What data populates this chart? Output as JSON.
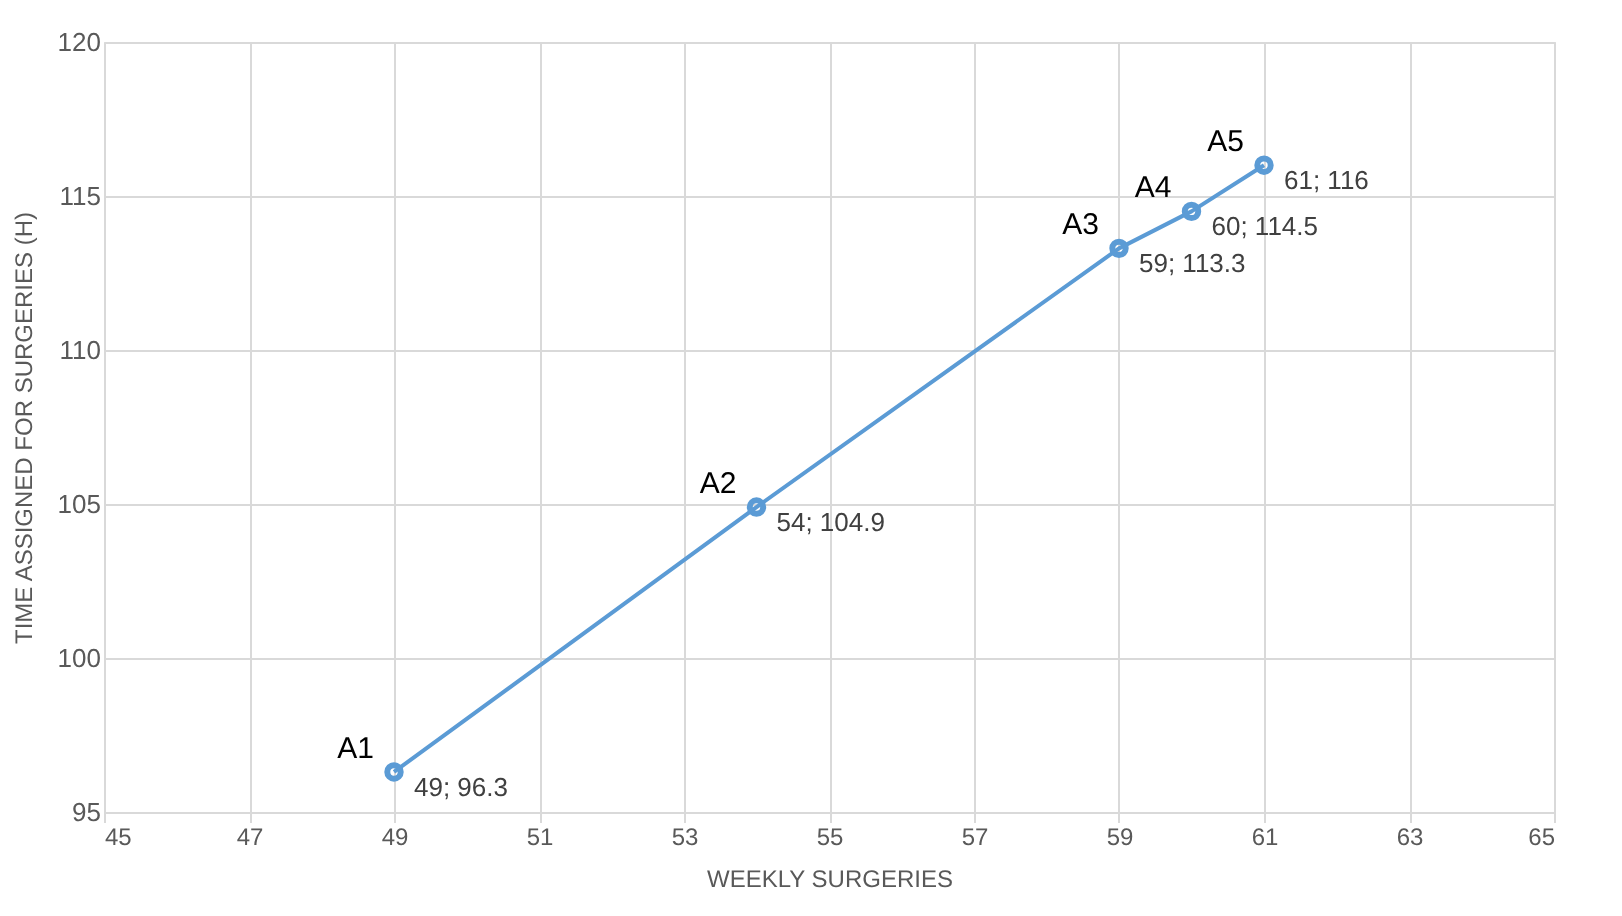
{
  "chart_data": {
    "type": "line",
    "xlabel": "WEEKLY SURGERIES",
    "ylabel": "TIME ASSIGNED FOR SURGERIES (H)",
    "x": [
      49,
      54,
      59,
      60,
      61
    ],
    "series": [
      {
        "color": "#5b9bd5",
        "values": [
          96.3,
          104.9,
          113.3,
          114.5,
          116
        ],
        "value_labels": [
          "49; 96.3",
          "54; 104.9",
          "59; 113.3",
          "60; 114.5",
          "61; 116"
        ]
      }
    ],
    "annotations": [
      {
        "text": "A1",
        "x": 49,
        "y": 96.3
      },
      {
        "text": "A2",
        "x": 54,
        "y": 104.9
      },
      {
        "text": "A3",
        "x": 59,
        "y": 113.3
      },
      {
        "text": "A4",
        "x": 60,
        "y": 114.5
      },
      {
        "text": "A5",
        "x": 61,
        "y": 116
      }
    ],
    "xlim": [
      45,
      65
    ],
    "xticks": [
      45,
      47,
      49,
      51,
      53,
      55,
      57,
      59,
      61,
      63,
      65
    ],
    "ylim": [
      95,
      120
    ],
    "yticks": [
      95,
      100,
      105,
      110,
      115,
      120
    ],
    "grid": true,
    "marker": "circle",
    "line_style": "solid"
  }
}
